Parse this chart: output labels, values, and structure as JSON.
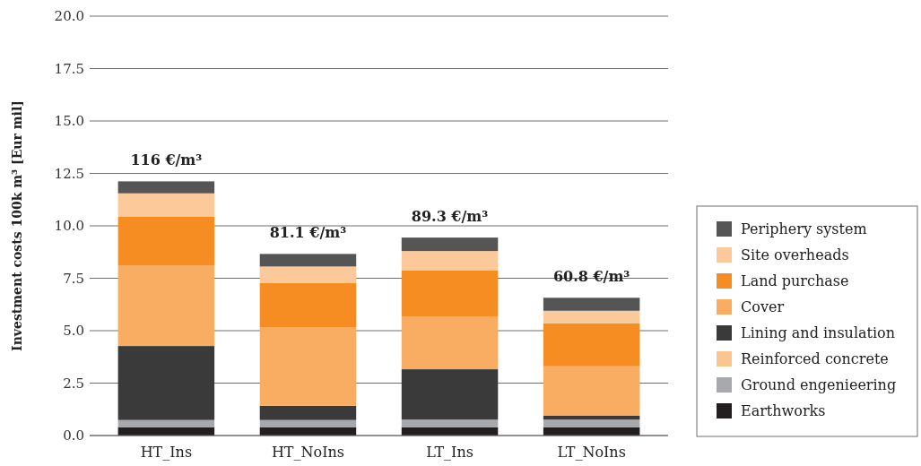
{
  "chart_data": {
    "type": "bar",
    "stacked": true,
    "ylabel": "Investment costs 100k m³ [Eur mil]",
    "categories": [
      "HT_Ins",
      "HT_NoIns",
      "LT_Ins",
      "LT_NoIns"
    ],
    "series": [
      {
        "name": "Earthworks",
        "color": "#231f20",
        "values": [
          0.4,
          0.4,
          0.4,
          0.4
        ]
      },
      {
        "name": "Ground engenieering",
        "color": "#a7a9ac",
        "values": [
          0.34,
          0.34,
          0.36,
          0.36
        ]
      },
      {
        "name": "Reinforced concrete",
        "color": "#fbc590",
        "values": [
          0,
          0,
          0,
          0
        ]
      },
      {
        "name": "Lining and insulation",
        "color": "#3a3a3a",
        "values": [
          3.53,
          0.68,
          2.4,
          0.18
        ]
      },
      {
        "name": "Cover",
        "color": "#f8ad62",
        "values": [
          3.85,
          3.74,
          2.51,
          2.36
        ]
      },
      {
        "name": "Land purchase",
        "color": "#f58d23",
        "values": [
          2.31,
          2.12,
          2.21,
          2.05
        ]
      },
      {
        "name": "Site overheads",
        "color": "#fcc99a",
        "values": [
          1.12,
          0.78,
          0.92,
          0.6
        ]
      },
      {
        "name": "Periphery system",
        "color": "#555555",
        "values": [
          0.57,
          0.6,
          0.64,
          0.62
        ]
      }
    ],
    "ylim": [
      0,
      20
    ],
    "yticks": [
      {
        "value": 0,
        "label": "0.0"
      },
      {
        "value": 2.5,
        "label": "2.5"
      },
      {
        "value": 5,
        "label": "5.0"
      },
      {
        "value": 7.5,
        "label": "7.5"
      },
      {
        "value": 10,
        "label": "10.0"
      },
      {
        "value": 12.5,
        "label": "12.5"
      },
      {
        "value": 15,
        "label": "15.0"
      },
      {
        "value": 17.5,
        "label": "17.5"
      },
      {
        "value": 20,
        "label": "20.0"
      }
    ],
    "grid": "y",
    "legend": "right",
    "annotations": [
      "116 €/m³",
      "81.1 €/m³",
      "89.3 €/m³",
      "60.8 €/m³"
    ]
  }
}
